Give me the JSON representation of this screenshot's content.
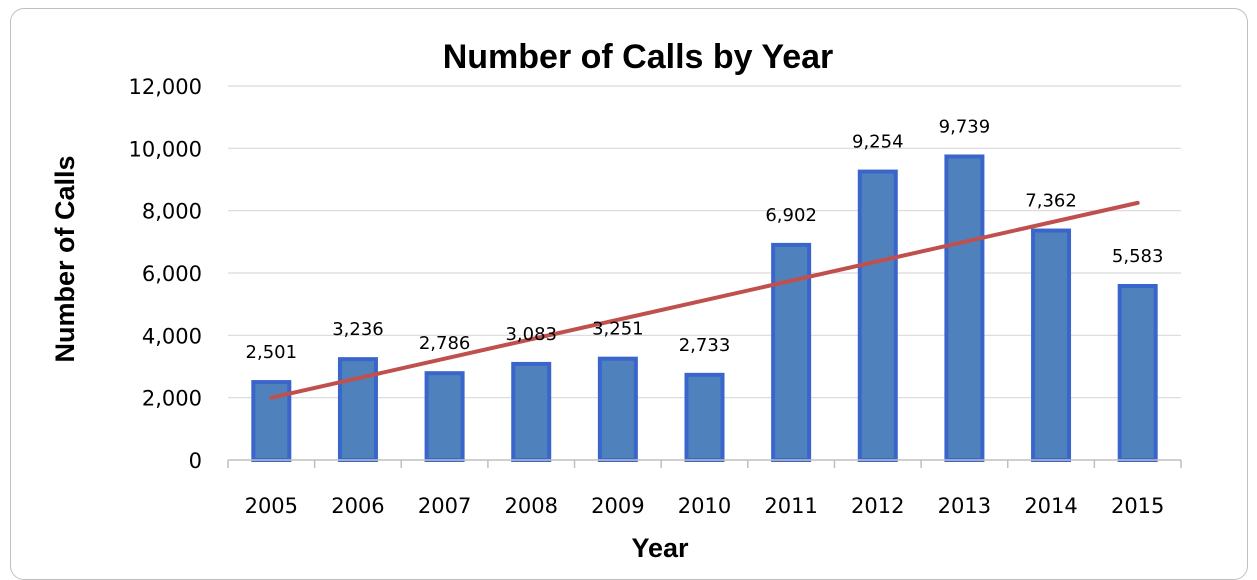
{
  "chart_data": {
    "type": "bar",
    "title": "Number of Calls by Year",
    "xlabel": "Year",
    "ylabel": "Number of Calls",
    "categories": [
      "2005",
      "2006",
      "2007",
      "2008",
      "2009",
      "2010",
      "2011",
      "2012",
      "2013",
      "2014",
      "2015"
    ],
    "values": [
      2501,
      3236,
      2786,
      3083,
      3251,
      2733,
      6902,
      9254,
      9739,
      7362,
      5583
    ],
    "data_labels": [
      "2,501",
      "3,236",
      "2,786",
      "3,083",
      "3,251",
      "2,733",
      "6,902",
      "9,254",
      "9,739",
      "7,362",
      "5,583"
    ],
    "ylim": [
      0,
      12000
    ],
    "yticks": [
      0,
      2000,
      4000,
      6000,
      8000,
      10000,
      12000
    ],
    "ytick_labels": [
      "0",
      "2,000",
      "4,000",
      "6,000",
      "8,000",
      "10,000",
      "12,000"
    ],
    "trendline": {
      "type": "linear",
      "start_value": 2000,
      "end_value": 8250
    },
    "grid": true,
    "legend": "none",
    "colors": {
      "bar_fill": "#4f81bd",
      "bar_stroke": "#3a66cc",
      "trendline": "#c0504d",
      "gridline": "#d9d9d9"
    }
  }
}
